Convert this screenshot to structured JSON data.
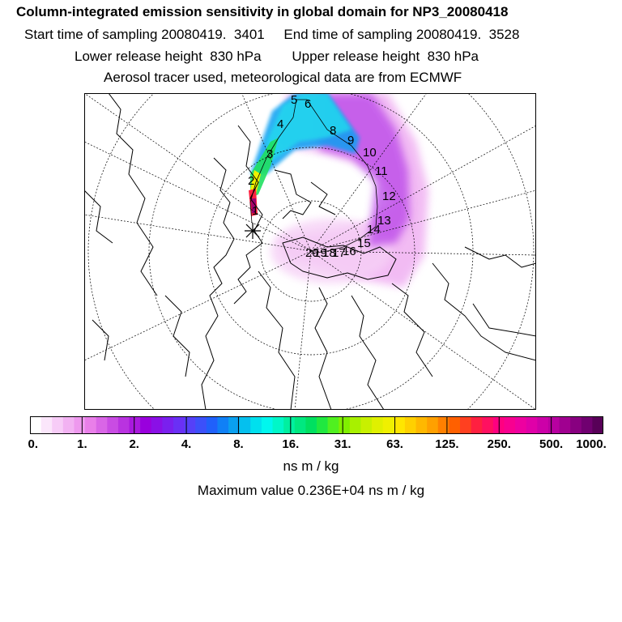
{
  "header": {
    "title": "Column-integrated emission sensitivity in global domain for NP3_20080418",
    "sampling": "Start time of sampling 20080419.  3401     End time of sampling 20080419.  3528",
    "release": "Lower release height  830 hPa        Upper release height  830 hPa",
    "tracer": "Aerosol tracer used, meteorological data are from ECMWF"
  },
  "map": {
    "trajectory_labels": [
      "1",
      "2",
      "3",
      "4",
      "5",
      "6",
      "8",
      "9",
      "10",
      "11",
      "12",
      "13",
      "14",
      "15",
      "16",
      "17",
      "18",
      "19",
      "20"
    ]
  },
  "colorbar": {
    "ticks": [
      "0.",
      "1.",
      "2.",
      "4.",
      "8.",
      "16.",
      "31.",
      "63.",
      "125.",
      "250.",
      "500.",
      "1000."
    ],
    "units": "ns m / kg",
    "colors": [
      "#ffffff",
      "#fbe6fb",
      "#f7ccf7",
      "#f2b2f2",
      "#ee99ee",
      "#e97fe9",
      "#d966e6",
      "#c94ce3",
      "#b933e0",
      "#a919dd",
      "#9900dd",
      "#8a10e6",
      "#7a20ee",
      "#6a30f5",
      "#5540f8",
      "#3c50fa",
      "#2060fb",
      "#1080f6",
      "#0aa0f0",
      "#05c0ee",
      "#00e0ee",
      "#00f7ee",
      "#00f7c8",
      "#00f0a0",
      "#00e880",
      "#00e060",
      "#20e840",
      "#50f020",
      "#80f000",
      "#a8f000",
      "#c8f000",
      "#e0f000",
      "#f0f000",
      "#ffe600",
      "#ffd000",
      "#ffb800",
      "#ffa000",
      "#ff8000",
      "#ff6000",
      "#ff4020",
      "#ff2040",
      "#ff1060",
      "#ff0080",
      "#f80090",
      "#ee00a0",
      "#e000a8",
      "#cc00a8",
      "#b800a0",
      "#a00090",
      "#880080",
      "#700070",
      "#580058"
    ]
  },
  "max_value": "Maximum value  0.236E+04 ns m / kg"
}
